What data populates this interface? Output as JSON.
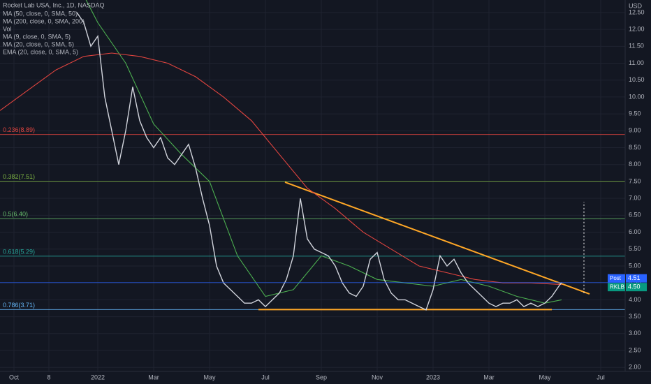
{
  "chart_data": {
    "type": "line",
    "title": "Rocket Lab USA, Inc., 1D, NASDAQ",
    "currency": "USD",
    "indicators": [
      "Vol",
      "MA (9, close, 0, SMA, 5)",
      "MA (20, close, 0, SMA, 5)",
      "EMA (20, close, 0, SMA, 5)"
    ],
    "series": [
      {
        "name": "MA (50, close, 0, SMA, 50)",
        "color": "#4caf50",
        "x": [
          2.5,
          3,
          4,
          5,
          6,
          7,
          8,
          9,
          10,
          11,
          12,
          13,
          14,
          15,
          16,
          17,
          18,
          19,
          19.6
        ],
        "values": [
          13,
          12.2,
          11,
          9.2,
          8.3,
          7.5,
          5.3,
          4.1,
          4.3,
          5.3,
          5,
          4.6,
          4.5,
          4.4,
          4.6,
          4.4,
          4.1,
          3.9,
          4
        ]
      },
      {
        "name": "MA (200, close, 0, SMA, 200)",
        "color": "#e0443f",
        "x": [
          -0.5,
          0.5,
          1.5,
          2.5,
          3.5,
          4.5,
          5.5,
          6.5,
          7.5,
          8.5,
          9.5,
          10.5,
          11.5,
          12.5,
          13.5,
          14.5,
          15.5,
          16.5,
          17.5,
          18.5,
          19.6
        ],
        "values": [
          9.6,
          10.2,
          10.8,
          11.2,
          11.3,
          11.2,
          11,
          10.6,
          10,
          9.3,
          8.3,
          7.3,
          6.7,
          6,
          5.5,
          5,
          4.8,
          4.6,
          4.5,
          4.5,
          4.45
        ]
      },
      {
        "name": "RKLB",
        "color": "#d1d4dc",
        "x": [
          2.25,
          2.5,
          2.75,
          3,
          3.25,
          3.5,
          3.75,
          4,
          4.25,
          4.5,
          4.75,
          5,
          5.25,
          5.5,
          5.75,
          6,
          6.25,
          6.5,
          6.75,
          7,
          7.25,
          7.5,
          7.75,
          8,
          8.25,
          8.5,
          8.75,
          9,
          9.25,
          9.5,
          9.75,
          10,
          10.25,
          10.5,
          10.75,
          11,
          11.25,
          11.5,
          11.75,
          12,
          12.25,
          12.5,
          12.75,
          13,
          13.25,
          13.5,
          13.75,
          14,
          14.25,
          14.5,
          14.75,
          15,
          15.25,
          15.5,
          15.75,
          16,
          16.25,
          16.5,
          16.75,
          17,
          17.25,
          17.5,
          17.75,
          18,
          18.25,
          18.5,
          18.75,
          19,
          19.25,
          19.5,
          19.6
        ],
        "values": [
          12.5,
          12.2,
          11.5,
          11.8,
          10,
          9,
          8,
          9,
          10.3,
          9.3,
          8.8,
          8.5,
          8.8,
          8.2,
          8,
          8.3,
          8.6,
          7.9,
          7,
          6.2,
          5,
          4.5,
          4.3,
          4.1,
          3.9,
          3.9,
          4,
          3.8,
          4,
          4.2,
          4.6,
          5.3,
          7,
          5.8,
          5.5,
          5.4,
          5.3,
          5,
          4.5,
          4.2,
          4.1,
          4.4,
          5.2,
          5.4,
          4.6,
          4.2,
          4,
          4,
          3.9,
          3.8,
          3.7,
          4.3,
          5.3,
          5,
          5.2,
          4.8,
          4.5,
          4.3,
          4.1,
          3.9,
          3.8,
          3.9,
          3.9,
          4,
          3.8,
          3.9,
          3.8,
          3.9,
          4.1,
          4.4,
          4.51
        ]
      }
    ],
    "fib_levels": [
      {
        "label": "0.236(8.89)",
        "value": 8.89,
        "color": "#e0443f"
      },
      {
        "label": "0.382(7.51)",
        "value": 7.51,
        "color": "#7cb342"
      },
      {
        "label": "0.5(6.40)",
        "value": 6.4,
        "color": "#66bb6a"
      },
      {
        "label": "0.618(5.29)",
        "value": 5.29,
        "color": "#26a69a"
      },
      {
        "label": "0.786(3.71)",
        "value": 3.71,
        "color": "#64b5f6"
      }
    ],
    "trend_lines": [
      {
        "x": [
          9.7,
          20.6
        ],
        "values": [
          7.48,
          4.17
        ],
        "color": "#ffa726"
      },
      {
        "x": [
          8.75,
          19.25
        ],
        "values": [
          3.71,
          3.71
        ],
        "color": "#ffa726"
      }
    ],
    "measure": {
      "x": 20.4,
      "values": [
        4.2,
        6.9
      ]
    },
    "price_tags": [
      {
        "label": "Post",
        "value": 4.51,
        "value_label": "4.51",
        "color": "#2962ff"
      },
      {
        "label": "RKLB",
        "value": 4.5,
        "value_label": "4.50",
        "color": "#089981"
      }
    ],
    "xlim": [
      -0.5,
      21.875
    ],
    "ylim": [
      1.88,
      12.87
    ],
    "xticks": [
      {
        "value": 0,
        "label": "Oct"
      },
      {
        "value": 1.25,
        "label": "8"
      },
      {
        "value": 3,
        "label": "2022"
      },
      {
        "value": 5,
        "label": "Mar"
      },
      {
        "value": 7,
        "label": "May"
      },
      {
        "value": 9,
        "label": "Jul"
      },
      {
        "value": 11,
        "label": "Sep"
      },
      {
        "value": 13,
        "label": "Nov"
      },
      {
        "value": 15,
        "label": "2023"
      },
      {
        "value": 17,
        "label": "Mar"
      },
      {
        "value": 19,
        "label": "May"
      },
      {
        "value": 21,
        "label": "Jul"
      }
    ],
    "yticks": [
      {
        "value": 2,
        "label": "2.00"
      },
      {
        "value": 2.5,
        "label": "2.50"
      },
      {
        "value": 3,
        "label": "3.00"
      },
      {
        "value": 3.5,
        "label": "3.50"
      },
      {
        "value": 4,
        "label": "4.00"
      },
      {
        "value": 4.5,
        "label": "4.50"
      },
      {
        "value": 5,
        "label": "5.00"
      },
      {
        "value": 5.5,
        "label": "5.50"
      },
      {
        "value": 6,
        "label": "6.00"
      },
      {
        "value": 6.5,
        "label": "6.50"
      },
      {
        "value": 7,
        "label": "7.00"
      },
      {
        "value": 7.5,
        "label": "7.50"
      },
      {
        "value": 8,
        "label": "8.00"
      },
      {
        "value": 8.5,
        "label": "8.50"
      },
      {
        "value": 9,
        "label": "9.00"
      },
      {
        "value": 9.5,
        "label": "9.50"
      },
      {
        "value": 10,
        "label": "10.00"
      },
      {
        "value": 10.5,
        "label": "10.50"
      },
      {
        "value": 11,
        "label": "11.00"
      },
      {
        "value": 11.5,
        "label": "11.50"
      },
      {
        "value": 12,
        "label": "12.00"
      },
      {
        "value": 12.5,
        "label": "12.50"
      }
    ],
    "grid": true
  }
}
